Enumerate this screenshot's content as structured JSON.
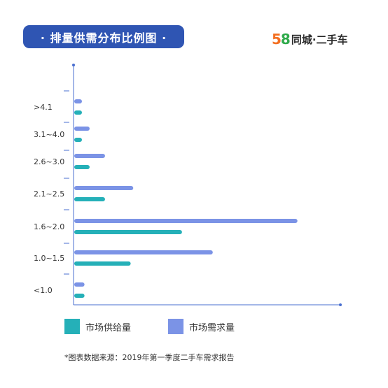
{
  "header": {
    "title": "· 排量供需分布比例图 ·",
    "brand_num_5": "5",
    "brand_num_8": "8",
    "brand_text": "同城·二手车"
  },
  "colors": {
    "title_bg": "#2f55b3",
    "supply": "#25b0b8",
    "demand": "#7b93e6",
    "axis": "#4a6fd0"
  },
  "legend": {
    "supply": "市场供给量",
    "demand": "市场需求量"
  },
  "footnote": "*图表数据来源：2019年第一季度二手车需求报告",
  "chart_data": {
    "type": "bar",
    "orientation": "horizontal",
    "categories": [
      "<1.0",
      "1.0~1.5",
      "1.6~2.0",
      "2.1~2.5",
      "2.6~3.0",
      "3.1~4.0",
      ">4.1"
    ],
    "series": [
      {
        "name": "市场需求量",
        "values": [
          4,
          54,
          87,
          23,
          12,
          6,
          3
        ]
      },
      {
        "name": "市场供给量",
        "values": [
          4,
          22,
          42,
          12,
          6,
          3,
          3
        ]
      }
    ],
    "xlim": [
      0,
      104
    ],
    "legend_position": "bottom-left",
    "grid": false
  }
}
